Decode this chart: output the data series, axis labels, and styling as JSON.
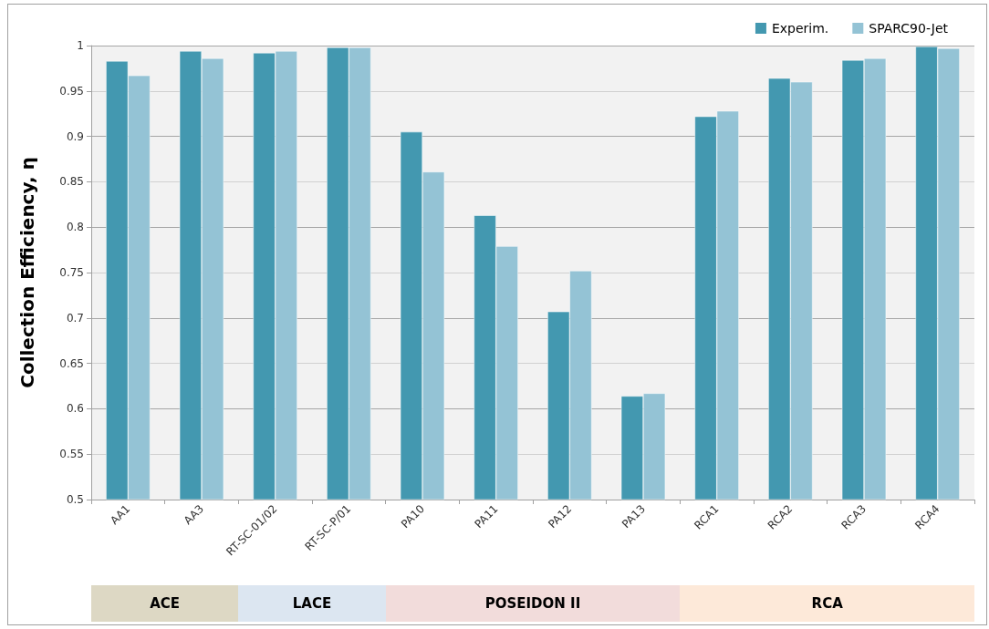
{
  "chart_data": {
    "type": "bar",
    "ylabel": "Collection Efficiency, η",
    "categories": [
      "AA1",
      "AA3",
      "RT-SC-01/02",
      "RT-SC-P/01",
      "PA10",
      "PA11",
      "PA12",
      "PA13",
      "RCA1",
      "RCA2",
      "RCA3",
      "RCA4"
    ],
    "series": [
      {
        "name": "Experim.",
        "color": "#4398b0",
        "values": [
          0.983,
          0.994,
          0.992,
          0.998,
          0.905,
          0.813,
          0.707,
          0.614,
          0.922,
          0.964,
          0.984,
          0.999
        ]
      },
      {
        "name": "SPARC90-Jet",
        "color": "#94c3d5",
        "values": [
          0.967,
          0.986,
          0.994,
          0.998,
          0.861,
          0.779,
          0.752,
          0.617,
          0.928,
          0.96,
          0.986,
          0.997
        ]
      }
    ],
    "ylim": [
      0.5,
      1
    ],
    "yticks": [
      0.5,
      0.55,
      0.6,
      0.65,
      0.7,
      0.75,
      0.8,
      0.85,
      0.9,
      0.95,
      1
    ],
    "annotations": [
      "ACE",
      "LACE",
      "POSEIDON II",
      "RCA"
    ],
    "grid": true,
    "legend": "top right"
  }
}
